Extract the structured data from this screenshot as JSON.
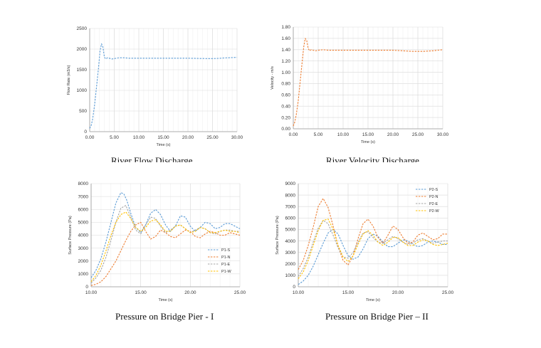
{
  "captions": {
    "c1": "River Flow Discharge",
    "c2": "River Velocity Discharge",
    "c3": "Pressure on Bridge Pier - I",
    "c4": "Pressure on Bridge Pier – II"
  },
  "chart_data": [
    {
      "type": "line",
      "xlabel": "Time (s)",
      "ylabel": "Flow Rate (m3/s)",
      "xlim": [
        0,
        30
      ],
      "ylim": [
        0,
        2500
      ],
      "xticks": [
        0,
        5,
        10,
        15,
        20,
        25,
        30
      ],
      "yticks": [
        0,
        500,
        1000,
        1500,
        2000,
        2500
      ],
      "xtick_labels": [
        "0.00",
        "5.00",
        "10.00",
        "15.00",
        "20.00",
        "25.00",
        "30.00"
      ],
      "ytick_labels": [
        "0",
        "500",
        "1000",
        "1500",
        "2000",
        "2500"
      ],
      "grid": true,
      "series": [
        {
          "color": "#5b9bd5",
          "dashed": true,
          "x": [
            0,
            0.3,
            0.6,
            1,
            1.4,
            1.8,
            2.1,
            2.4,
            2.7,
            3,
            3.3,
            3.6,
            4,
            4.5,
            5,
            6,
            7,
            8,
            10,
            12,
            14,
            16,
            18,
            20,
            22,
            24,
            25,
            26,
            28,
            30
          ],
          "y": [
            80,
            150,
            300,
            650,
            1100,
            1550,
            1950,
            2130,
            2050,
            1800,
            1760,
            1790,
            1780,
            1760,
            1770,
            1790,
            1790,
            1780,
            1780,
            1780,
            1780,
            1780,
            1780,
            1780,
            1775,
            1770,
            1770,
            1775,
            1790,
            1800
          ]
        }
      ]
    },
    {
      "type": "line",
      "xlabel": "Time (s)",
      "ylabel": "Velocity - m/s",
      "xlim": [
        0,
        30
      ],
      "ylim": [
        0,
        1.8
      ],
      "xticks": [
        0,
        5,
        10,
        15,
        20,
        25,
        30
      ],
      "yticks": [
        0,
        0.2,
        0.4,
        0.6,
        0.8,
        1,
        1.2,
        1.4,
        1.6,
        1.8
      ],
      "xtick_labels": [
        "0.00",
        "5.00",
        "10.00",
        "15.00",
        "20.00",
        "25.00",
        "30.00"
      ],
      "ytick_labels": [
        "0.00",
        "0.20",
        "0.40",
        "0.60",
        "0.80",
        "1.00",
        "1.20",
        "1.40",
        "1.60",
        "1.80"
      ],
      "grid": true,
      "series": [
        {
          "color": "#ed7d31",
          "dashed": true,
          "x": [
            0,
            0.3,
            0.6,
            1,
            1.4,
            1.8,
            2.1,
            2.4,
            2.7,
            3,
            3.3,
            3.6,
            4,
            4.5,
            5,
            6,
            7,
            8,
            10,
            12,
            14,
            16,
            18,
            20,
            22,
            24,
            25,
            26,
            28,
            30
          ],
          "y": [
            0.05,
            0.12,
            0.25,
            0.5,
            0.85,
            1.2,
            1.45,
            1.6,
            1.56,
            1.42,
            1.38,
            1.4,
            1.39,
            1.38,
            1.39,
            1.4,
            1.39,
            1.39,
            1.39,
            1.39,
            1.39,
            1.39,
            1.39,
            1.39,
            1.38,
            1.37,
            1.37,
            1.37,
            1.38,
            1.4
          ]
        }
      ]
    },
    {
      "type": "line",
      "xlabel": "Time (s)",
      "ylabel": "Surface Pressure (Pa)",
      "xlim": [
        10,
        25
      ],
      "ylim": [
        0,
        8000
      ],
      "xticks": [
        10,
        15,
        20,
        25
      ],
      "yticks": [
        0,
        1000,
        2000,
        3000,
        4000,
        5000,
        6000,
        7000,
        8000
      ],
      "xtick_labels": [
        "10.00",
        "15.00",
        "20.00",
        "25.00"
      ],
      "ytick_labels": [
        "0",
        "1000",
        "2000",
        "3000",
        "4000",
        "5000",
        "6000",
        "7000",
        "8000"
      ],
      "grid": true,
      "legend": "bottom-right",
      "series": [
        {
          "name": "P1-S",
          "color": "#5b9bd5",
          "x": [
            10,
            10.5,
            11,
            11.5,
            12,
            12.5,
            13,
            13.3,
            13.6,
            14,
            14.5,
            15,
            15.5,
            16,
            16.5,
            17,
            17.5,
            18,
            18.5,
            19,
            19.5,
            20,
            20.5,
            21,
            21.5,
            22,
            22.5,
            23,
            23.5,
            24,
            24.5,
            25
          ],
          "y": [
            700,
            1300,
            2200,
            3500,
            5000,
            6500,
            7300,
            7200,
            6700,
            5700,
            4600,
            4200,
            4800,
            5700,
            6000,
            5600,
            4800,
            4300,
            4700,
            5500,
            5400,
            4700,
            4300,
            4600,
            5000,
            4900,
            4500,
            4600,
            4900,
            4900,
            4700,
            4500
          ]
        },
        {
          "name": "P1-N",
          "color": "#ed7d31",
          "x": [
            10,
            10.5,
            11,
            11.5,
            12,
            12.5,
            13,
            13.5,
            14,
            14.5,
            15,
            15.5,
            16,
            16.5,
            17,
            17.5,
            18,
            18.5,
            19,
            19.5,
            20,
            20.5,
            21,
            21.5,
            22,
            22.5,
            23,
            23.5,
            24,
            24.5,
            25
          ],
          "y": [
            100,
            200,
            400,
            800,
            1400,
            2000,
            2800,
            3600,
            4300,
            4800,
            5000,
            4300,
            3700,
            3900,
            4400,
            4200,
            3900,
            3800,
            4100,
            4400,
            4300,
            3900,
            3800,
            4100,
            4300,
            4200,
            4000,
            4000,
            4200,
            4100,
            4000
          ]
        },
        {
          "name": "P1-E",
          "color": "#a5a5a5",
          "x": [
            10,
            10.5,
            11,
            11.5,
            12,
            12.5,
            13,
            13.5,
            14,
            14.5,
            15,
            15.5,
            16,
            16.5,
            17,
            17.5,
            18,
            18.5,
            19,
            19.5,
            20,
            20.5,
            21,
            21.5,
            22,
            22.5,
            23,
            23.5,
            24,
            24.5,
            25
          ],
          "y": [
            300,
            700,
            1300,
            2300,
            3600,
            5000,
            6100,
            6300,
            5400,
            4400,
            4100,
            4800,
            5400,
            5300,
            4700,
            4200,
            4400,
            4700,
            4800,
            4500,
            4200,
            4400,
            4600,
            4500,
            4200,
            4100,
            4300,
            4400,
            4400,
            4300,
            4300
          ]
        },
        {
          "name": "P1-W",
          "color": "#ffc000",
          "x": [
            10,
            10.5,
            11,
            11.5,
            12,
            12.5,
            13,
            13.5,
            14,
            14.5,
            15,
            15.5,
            16,
            16.5,
            17,
            17.5,
            18,
            18.5,
            19,
            19.5,
            20,
            20.5,
            21,
            21.5,
            22,
            22.5,
            23,
            23.5,
            24,
            24.5,
            25
          ],
          "y": [
            400,
            900,
            1700,
            2800,
            4000,
            5000,
            5600,
            5800,
            5300,
            4600,
            4300,
            4600,
            5100,
            5200,
            4800,
            4300,
            4300,
            4700,
            4800,
            4500,
            4200,
            4300,
            4600,
            4500,
            4200,
            4200,
            4300,
            4400,
            4300,
            4300,
            4200
          ]
        }
      ]
    },
    {
      "type": "line",
      "xlabel": "Time (s)",
      "ylabel": "Surface Pressure (Pa)",
      "xlim": [
        10,
        25
      ],
      "ylim": [
        0,
        9000
      ],
      "xticks": [
        10,
        15,
        20,
        25
      ],
      "yticks": [
        0,
        1000,
        2000,
        3000,
        4000,
        5000,
        6000,
        7000,
        8000,
        9000
      ],
      "xtick_labels": [
        "10.00",
        "15.00",
        "20.00",
        "25.00"
      ],
      "ytick_labels": [
        "0",
        "1000",
        "2000",
        "3000",
        "4000",
        "5000",
        "6000",
        "7000",
        "8000",
        "9000"
      ],
      "grid": true,
      "legend": "top-right",
      "series": [
        {
          "name": "P2-S",
          "color": "#5b9bd5",
          "x": [
            10,
            10.5,
            11,
            11.5,
            12,
            12.5,
            13,
            13.5,
            14,
            14.5,
            15,
            15.5,
            16,
            16.5,
            17,
            17.5,
            18,
            18.5,
            19,
            19.5,
            20,
            20.5,
            21,
            21.5,
            22,
            22.5,
            23,
            23.5,
            24,
            24.5,
            25
          ],
          "y": [
            200,
            500,
            1000,
            1800,
            2800,
            3800,
            4700,
            5000,
            4600,
            3600,
            2700,
            2400,
            2600,
            3300,
            4200,
            4600,
            4400,
            3900,
            3500,
            3500,
            3800,
            4100,
            4000,
            3700,
            3500,
            3600,
            3900,
            4000,
            3900,
            3700,
            3700
          ]
        },
        {
          "name": "P2-N",
          "color": "#ed7d31",
          "x": [
            10,
            10.5,
            11,
            11.5,
            12,
            12.5,
            13,
            13.5,
            14,
            14.5,
            15,
            15.5,
            16,
            16.5,
            17,
            17.5,
            18,
            18.5,
            19,
            19.5,
            20,
            20.5,
            21,
            21.5,
            22,
            22.5,
            23,
            23.5,
            24,
            24.5,
            25
          ],
          "y": [
            1500,
            2300,
            3600,
            5200,
            7000,
            7700,
            6900,
            5300,
            3500,
            2300,
            1900,
            2700,
            4200,
            5500,
            5900,
            5300,
            4300,
            3800,
            4500,
            5300,
            5000,
            4300,
            3800,
            3900,
            4500,
            4700,
            4400,
            4100,
            4200,
            4600,
            4600
          ]
        },
        {
          "name": "P2-E",
          "color": "#a5a5a5",
          "x": [
            10,
            10.5,
            11,
            11.5,
            12,
            12.5,
            13,
            13.5,
            14,
            14.5,
            15,
            15.5,
            16,
            16.5,
            17,
            17.5,
            18,
            18.5,
            19,
            19.5,
            20,
            20.5,
            21,
            21.5,
            22,
            22.5,
            23,
            23.5,
            24,
            24.5,
            25
          ],
          "y": [
            900,
            1600,
            2600,
            3900,
            5100,
            5800,
            5500,
            4500,
            3400,
            2600,
            2500,
            3000,
            3900,
            4700,
            4800,
            4300,
            3900,
            3800,
            4100,
            4400,
            4200,
            3900,
            3700,
            3800,
            4100,
            4200,
            4000,
            3800,
            3900,
            4000,
            4000
          ]
        },
        {
          "name": "P2-W",
          "color": "#ffc000",
          "x": [
            10,
            10.5,
            11,
            11.5,
            12,
            12.5,
            13,
            13.5,
            14,
            14.5,
            15,
            15.5,
            16,
            16.5,
            17,
            17.5,
            18,
            18.5,
            19,
            19.5,
            20,
            20.5,
            21,
            21.5,
            22,
            22.5,
            23,
            23.5,
            24,
            24.5,
            25
          ],
          "y": [
            700,
            1300,
            2300,
            3600,
            4900,
            5800,
            5900,
            5000,
            3600,
            2600,
            2200,
            2700,
            3700,
            4600,
            4900,
            4500,
            3900,
            3600,
            3900,
            4300,
            4300,
            3900,
            3600,
            3600,
            3900,
            4100,
            4000,
            3700,
            3600,
            3700,
            3800
          ]
        }
      ]
    }
  ]
}
